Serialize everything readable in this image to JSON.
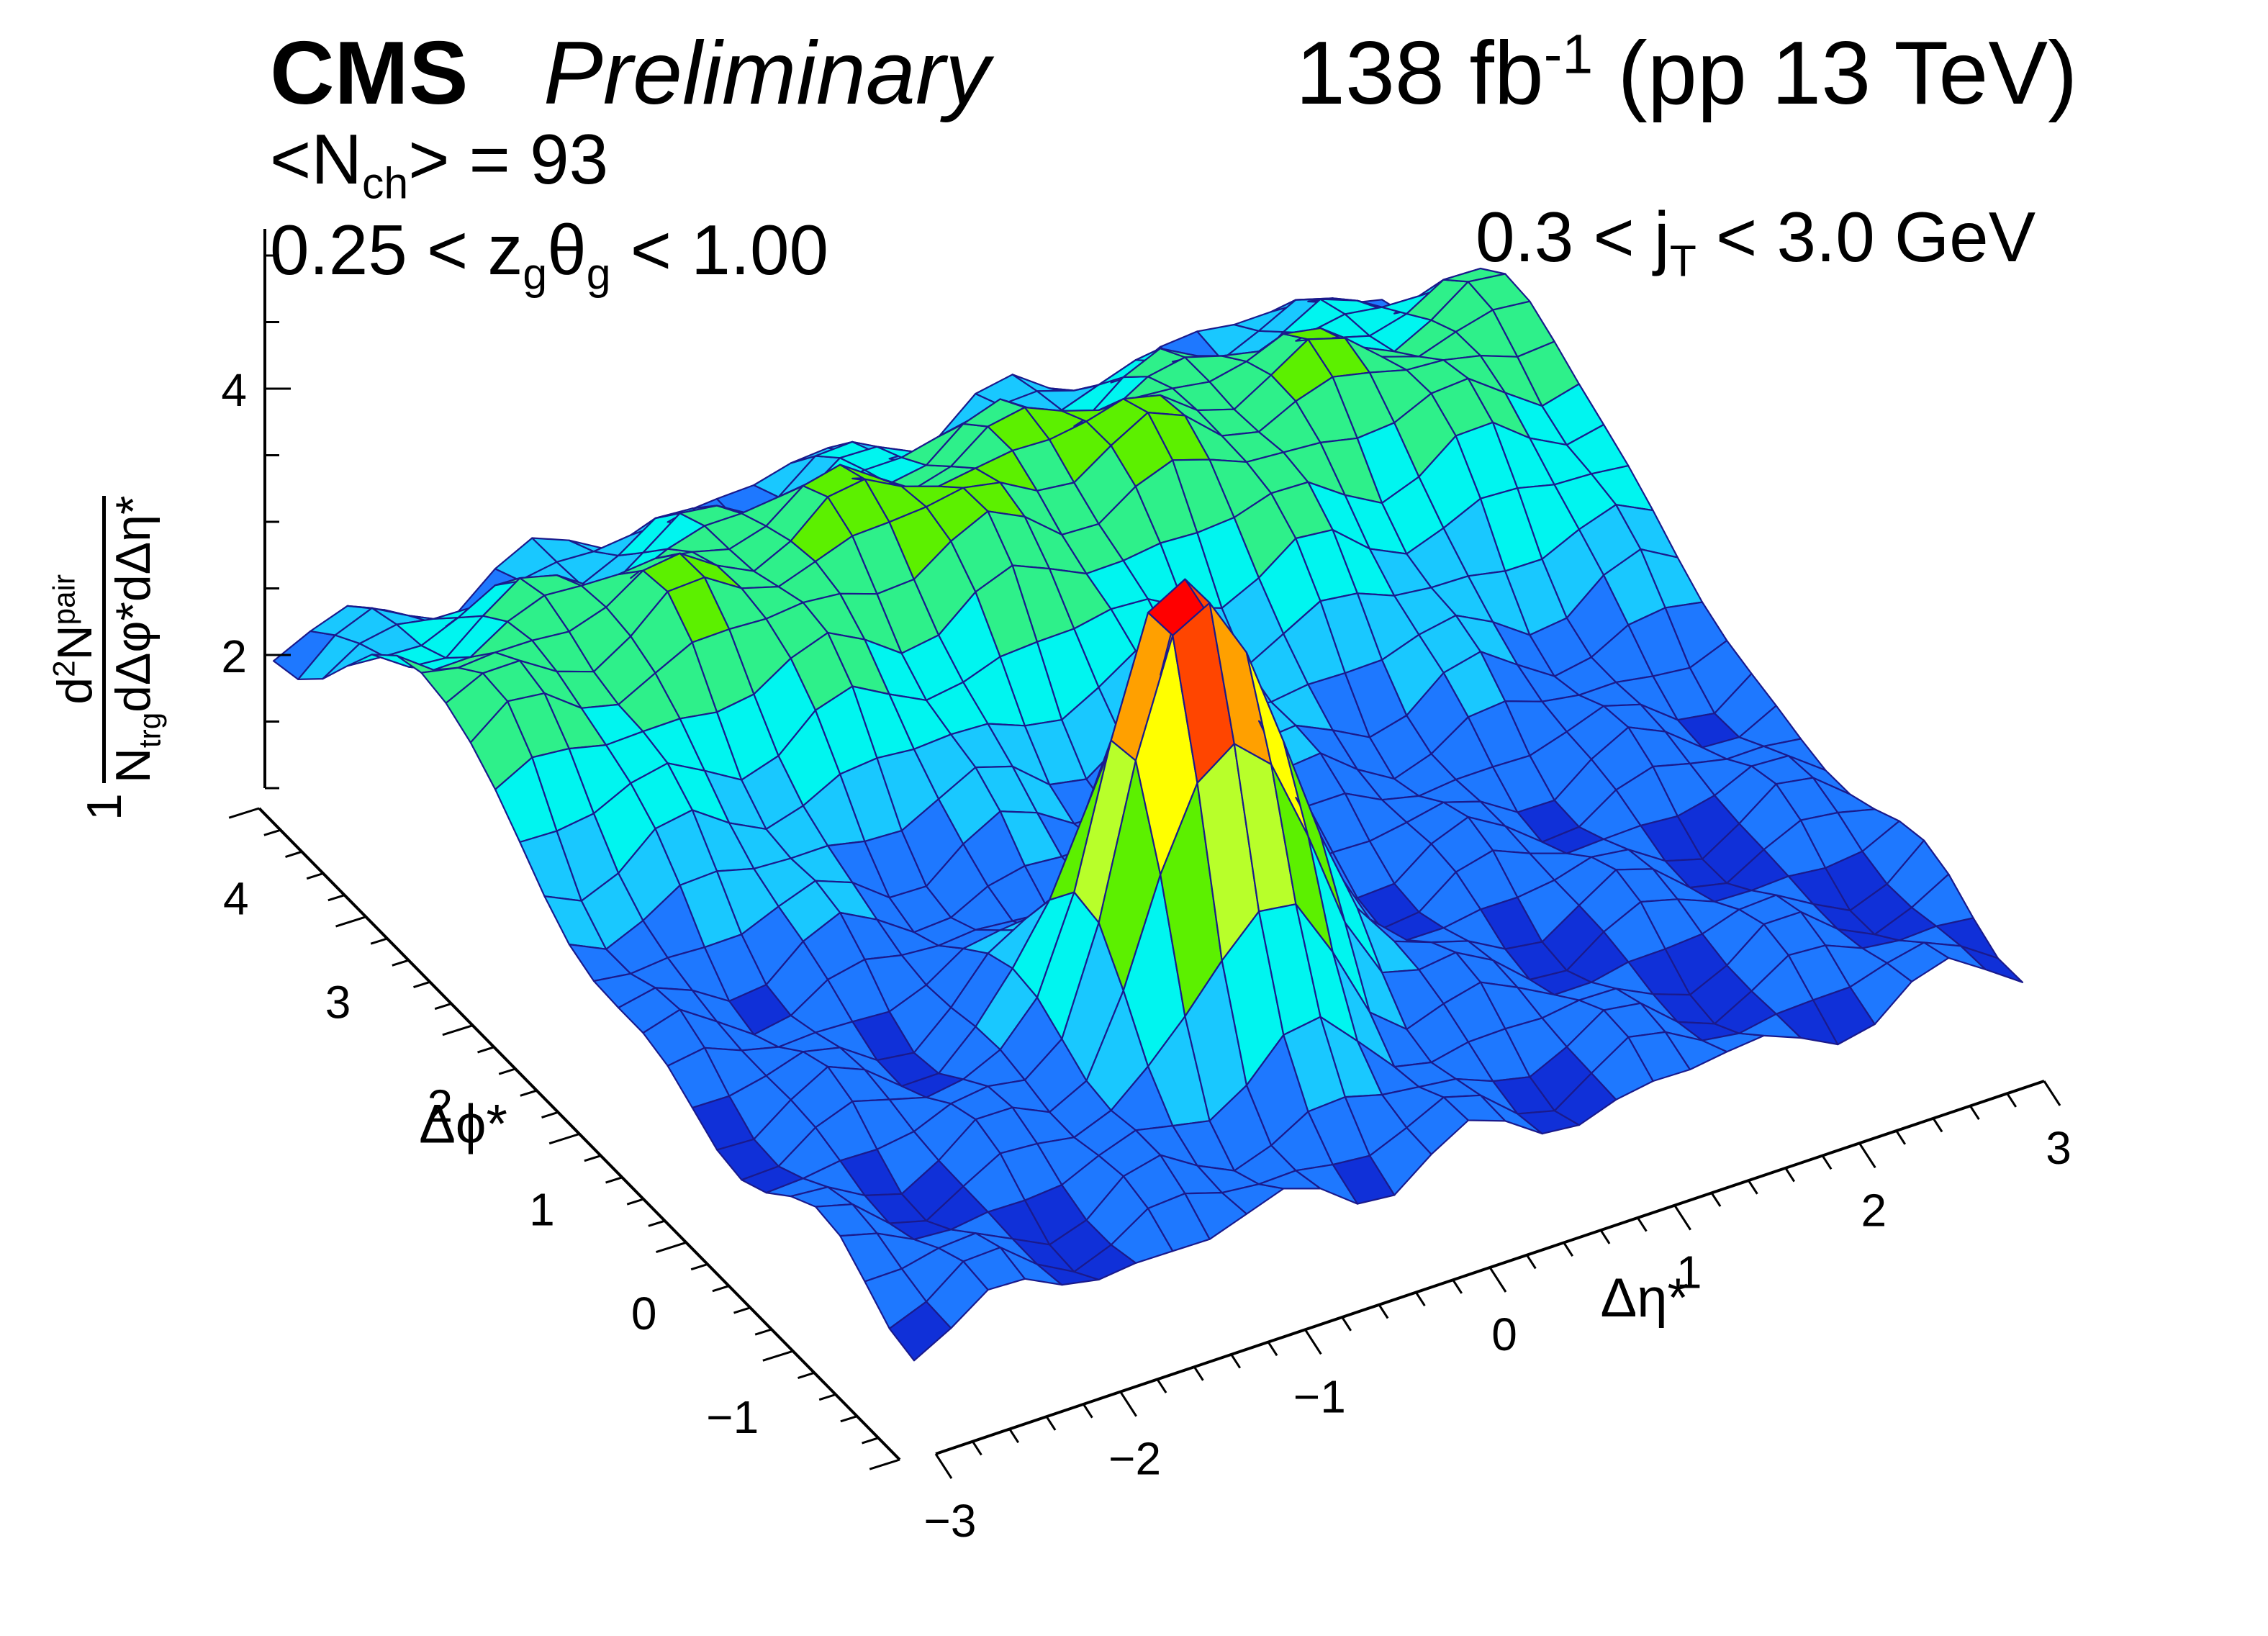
{
  "header": {
    "experiment": "CMS",
    "status": "Preliminary",
    "lumi_value": "138 fb",
    "lumi_exp": "-1",
    "lumi_tail": " (pp 13 TeV)",
    "nch_pre": "<N",
    "nch_sub": "ch",
    "nch_post": "> = 93",
    "zg_pre": "0.25 < z",
    "zg_sub1": "g",
    "zg_theta": "θ",
    "zg_sub2": "g",
    "zg_post": " < 1.00",
    "jt_pre": "0.3 < j",
    "jt_sub": "T",
    "jt_post": " < 3.0 GeV"
  },
  "chart_data": {
    "type": "surface",
    "title": "CMS Preliminary",
    "zlabel": "1/N_trg d2N^pair / d(Δφ*) d(Δη*)",
    "ylabel_num": "1",
    "ylabel_d2n": "d",
    "ylabel_d2n_sup": "2",
    "ylabel_n": "N",
    "ylabel_pair": "pair",
    "ylabel_den_n": "N",
    "ylabel_den_trg": "trg",
    "ylabel_den_rest": "dΔφ*dΔη*",
    "xlabel": "Δη*",
    "phi_label": "Δϕ*",
    "eta_range": [
      -3,
      3
    ],
    "phi_range": [
      -1.57,
      4.71
    ],
    "z_range": [
      1,
      5.2
    ],
    "eta_ticks": [
      "−3",
      "−2",
      "−1",
      "0",
      "1",
      "2",
      "3"
    ],
    "phi_ticks": [
      "−1",
      "0",
      "1",
      "2",
      "3",
      "4"
    ],
    "z_ticks": [
      "2",
      "4"
    ],
    "near_side_peak": {
      "eta": -0.6,
      "phi": 0.0,
      "z": 5.2
    },
    "away_side_ridge": {
      "phi": 3.14,
      "z": 3.2
    },
    "baseline_z": 1.8,
    "colormap": [
      "#1030d8",
      "#1e78ff",
      "#19c8ff",
      "#00f5f0",
      "#2ef08a",
      "#5cf000",
      "#b8ff2a",
      "#ffff00",
      "#ffa000",
      "#ff4500",
      "#ff0000"
    ],
    "mesh_color": "#1a1a8c"
  }
}
